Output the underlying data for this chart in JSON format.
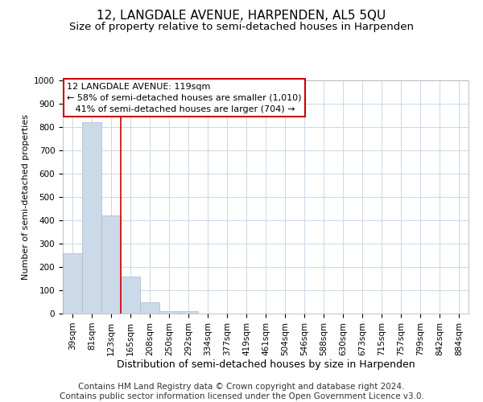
{
  "title": "12, LANGDALE AVENUE, HARPENDEN, AL5 5QU",
  "subtitle": "Size of property relative to semi-detached houses in Harpenden",
  "xlabel": "Distribution of semi-detached houses by size in Harpenden",
  "ylabel": "Number of semi-detached properties",
  "categories": [
    "39sqm",
    "81sqm",
    "123sqm",
    "165sqm",
    "208sqm",
    "250sqm",
    "292sqm",
    "334sqm",
    "377sqm",
    "419sqm",
    "461sqm",
    "504sqm",
    "546sqm",
    "588sqm",
    "630sqm",
    "673sqm",
    "715sqm",
    "757sqm",
    "799sqm",
    "842sqm",
    "884sqm"
  ],
  "values": [
    260,
    820,
    420,
    160,
    50,
    10,
    10,
    0,
    0,
    0,
    0,
    0,
    0,
    0,
    0,
    0,
    0,
    0,
    0,
    0,
    0
  ],
  "bar_color": "#ccd9e8",
  "bar_edge_color": "#a8bdd0",
  "vline_color": "#cc0000",
  "vline_x": 2.5,
  "annotation_line1": "12 LANGDALE AVENUE: 119sqm",
  "annotation_line2": "← 58% of semi-detached houses are smaller (1,010)",
  "annotation_line3": "   41% of semi-detached houses are larger (704) →",
  "annotation_box_color": "#ffffff",
  "annotation_box_edge_color": "#cc0000",
  "ylim": [
    0,
    1000
  ],
  "yticks": [
    0,
    100,
    200,
    300,
    400,
    500,
    600,
    700,
    800,
    900,
    1000
  ],
  "grid_color": "#c8d8e8",
  "footer_line1": "Contains HM Land Registry data © Crown copyright and database right 2024.",
  "footer_line2": "Contains public sector information licensed under the Open Government Licence v3.0.",
  "title_fontsize": 11,
  "subtitle_fontsize": 9.5,
  "ylabel_fontsize": 8,
  "xlabel_fontsize": 9,
  "tick_fontsize": 7.5,
  "footer_fontsize": 7.5,
  "annotation_fontsize": 8
}
